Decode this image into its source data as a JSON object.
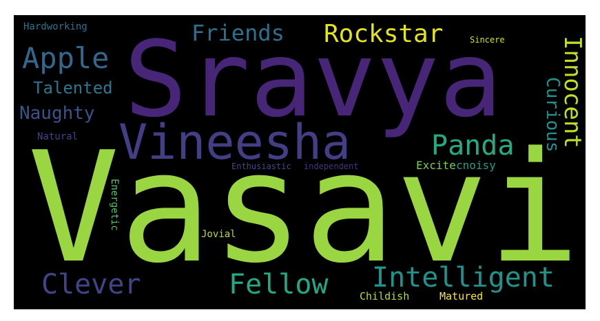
{
  "words": {
    "vasavi": {
      "text": "Vasavi",
      "color": "#9ad641"
    },
    "sravya": {
      "text": "Sravya",
      "color": "#482677"
    },
    "vineesha": {
      "text": "Vineesha",
      "color": "#433e85"
    },
    "rockstar": {
      "text": "Rockstar",
      "color": "#e3e419"
    },
    "friends": {
      "text": "Friends",
      "color": "#2d708e"
    },
    "apple": {
      "text": "Apple",
      "color": "#31688e"
    },
    "hardworking": {
      "text": "Hardworking",
      "color": "#2c728e"
    },
    "sincere": {
      "text": "Sincere",
      "color": "#d8e219"
    },
    "talented": {
      "text": "Talented",
      "color": "#2a788e"
    },
    "naughty": {
      "text": "Naughty",
      "color": "#3b528b"
    },
    "natural": {
      "text": "Natural",
      "color": "#414487"
    },
    "panda": {
      "text": "Panda",
      "color": "#25ab82"
    },
    "curious": {
      "text": "Curious",
      "color": "#21918c"
    },
    "innocent": {
      "text": "Innocent",
      "color": "#bddf26"
    },
    "enthusiastic": {
      "text": "Enthusiastic",
      "color": "#3e4a89"
    },
    "independent": {
      "text": "independent",
      "color": "#46337e"
    },
    "excited": {
      "text": "Excite",
      "color": "#7ad151"
    },
    "noisy": {
      "text": "cnoisy",
      "color": "#1f9e89"
    },
    "energetic": {
      "text": "Energetic",
      "color": "#52c569"
    },
    "jovial": {
      "text": "Jovial",
      "color": "#b5de2b"
    },
    "clever": {
      "text": "Clever",
      "color": "#414487"
    },
    "fellow": {
      "text": "Fellow",
      "color": "#22a884"
    },
    "intelligent": {
      "text": "Intelligent",
      "color": "#1f948c"
    },
    "childish": {
      "text": "Childish",
      "color": "#b5de2b"
    },
    "matured": {
      "text": "Matured",
      "color": "#fde725"
    }
  }
}
